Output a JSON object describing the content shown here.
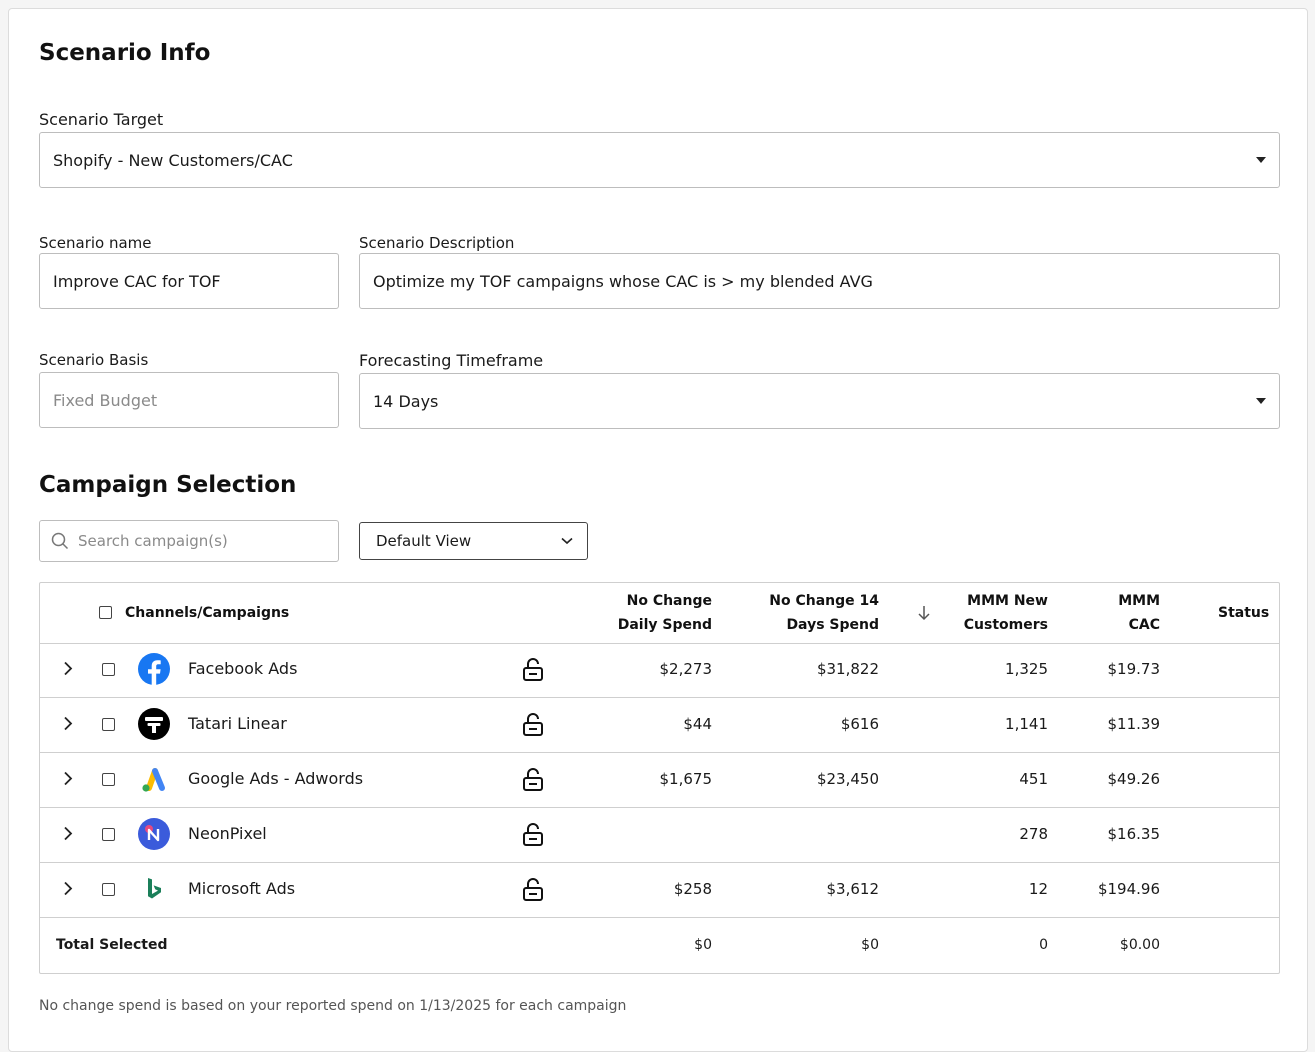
{
  "scenario_info": {
    "title": "Scenario Info",
    "target_label": "Scenario Target",
    "target_value": "Shopify - New Customers/CAC",
    "name_label": "Scenario name",
    "name_value": "Improve CAC for TOF",
    "description_label": "Scenario Description",
    "description_value": "Optimize my TOF campaigns whose CAC is > my blended AVG",
    "basis_label": "Scenario Basis",
    "basis_placeholder": "Fixed Budget",
    "timeframe_label": "Forecasting Timeframe",
    "timeframe_value": "14 Days"
  },
  "campaign_selection": {
    "title": "Campaign Selection",
    "search_placeholder": "Search campaign(s)",
    "view_value": "Default View"
  },
  "table": {
    "headers": {
      "channels": "Channels/Campaigns",
      "daily_spend_1": "No Change",
      "daily_spend_2": "Daily Spend",
      "days_spend_1": "No Change 14",
      "days_spend_2": "Days Spend",
      "mmm_new_1": "MMM New",
      "mmm_new_2": "Customers",
      "mmm_cac_1": "MMM",
      "mmm_cac_2": "CAC",
      "status": "Status"
    },
    "rows": [
      {
        "name": "Facebook Ads",
        "logo": "facebook-logo",
        "daily": "$2,273",
        "days": "$31,822",
        "customers": "1,325",
        "cac": "$19.73"
      },
      {
        "name": "Tatari Linear",
        "logo": "tatari-logo",
        "daily": "$44",
        "days": "$616",
        "customers": "1,141",
        "cac": "$11.39"
      },
      {
        "name": "Google Ads - Adwords",
        "logo": "google-ads-logo",
        "daily": "$1,675",
        "days": "$23,450",
        "customers": "451",
        "cac": "$49.26"
      },
      {
        "name": "NeonPixel",
        "logo": "neonpixel-logo",
        "daily": "",
        "days": "",
        "customers": "278",
        "cac": "$16.35"
      },
      {
        "name": "Microsoft Ads",
        "logo": "microsoft-ads-logo",
        "daily": "$258",
        "days": "$3,612",
        "customers": "12",
        "cac": "$194.96"
      }
    ],
    "total": {
      "label": "Total Selected",
      "daily": "$0",
      "days": "$0",
      "customers": "0",
      "cac": "$0.00"
    }
  },
  "footer_note": "No change spend is based on your reported spend on 1/13/2025 for each campaign"
}
